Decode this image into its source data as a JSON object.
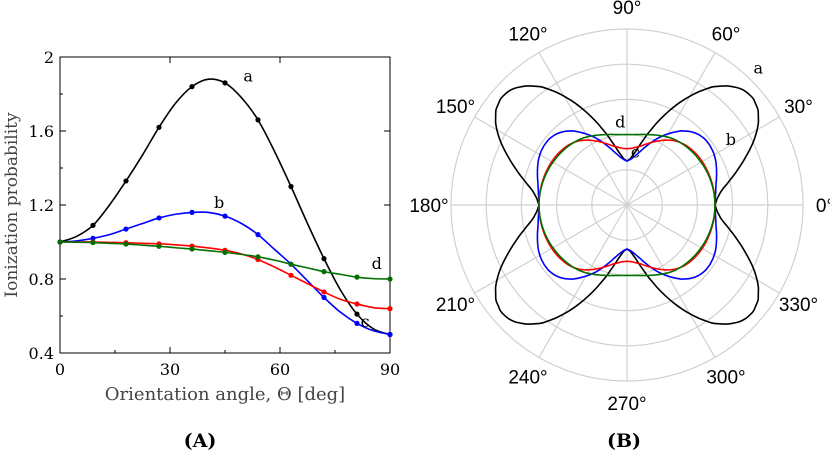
{
  "chart_data": [
    {
      "panel_label": "(A)",
      "type": "line",
      "xlabel": "Orientation angle, Θ [deg]",
      "ylabel": "Ionization probability",
      "xlim": [
        0,
        90
      ],
      "ylim": [
        0.4,
        2.0
      ],
      "xticks": [
        "0",
        "30",
        "60",
        "90"
      ],
      "xtick_values": [
        0,
        30,
        60,
        90
      ],
      "yticks": [
        "0.4",
        "0.8",
        "1.2",
        "1.6",
        "2"
      ],
      "ytick_values": [
        0.4,
        0.8,
        1.2,
        1.6,
        2.0
      ],
      "grid": false,
      "marker_x": [
        0,
        9,
        18,
        27,
        36,
        45,
        54,
        63,
        72,
        81,
        90
      ],
      "series": [
        {
          "name": "a",
          "color": "#000000",
          "x": [
            0,
            4.5,
            9,
            13.5,
            18,
            22.5,
            27,
            31.5,
            36,
            40.5,
            45,
            49.5,
            54,
            58.5,
            63,
            67.5,
            72,
            76.5,
            81,
            85.5,
            90
          ],
          "y": [
            1.0,
            1.03,
            1.09,
            1.2,
            1.33,
            1.47,
            1.62,
            1.75,
            1.84,
            1.88,
            1.86,
            1.78,
            1.66,
            1.49,
            1.3,
            1.1,
            0.91,
            0.74,
            0.61,
            0.53,
            0.5
          ]
        },
        {
          "name": "b",
          "color": "#0000ff",
          "x": [
            0,
            4.5,
            9,
            13.5,
            18,
            22.5,
            27,
            31.5,
            36,
            40.5,
            45,
            49.5,
            54,
            58.5,
            63,
            67.5,
            72,
            76.5,
            81,
            85.5,
            90
          ],
          "y": [
            1.0,
            1.006,
            1.02,
            1.04,
            1.07,
            1.1,
            1.13,
            1.15,
            1.16,
            1.16,
            1.14,
            1.1,
            1.04,
            0.96,
            0.88,
            0.79,
            0.7,
            0.62,
            0.56,
            0.52,
            0.5
          ]
        },
        {
          "name": "c",
          "color": "#ff0000",
          "x": [
            0,
            4.5,
            9,
            13.5,
            18,
            22.5,
            27,
            31.5,
            36,
            40.5,
            45,
            49.5,
            54,
            58.5,
            63,
            67.5,
            72,
            76.5,
            81,
            85.5,
            90
          ],
          "y": [
            1.0,
            1.0,
            1.0,
            0.998,
            0.996,
            0.993,
            0.99,
            0.985,
            0.978,
            0.968,
            0.955,
            0.935,
            0.905,
            0.865,
            0.82,
            0.775,
            0.73,
            0.69,
            0.665,
            0.645,
            0.64
          ]
        },
        {
          "name": "d",
          "color": "#007000",
          "x": [
            0,
            4.5,
            9,
            13.5,
            18,
            22.5,
            27,
            31.5,
            36,
            40.5,
            45,
            49.5,
            54,
            58.5,
            63,
            67.5,
            72,
            76.5,
            81,
            85.5,
            90
          ],
          "y": [
            1.0,
            0.999,
            0.997,
            0.993,
            0.989,
            0.983,
            0.977,
            0.969,
            0.962,
            0.953,
            0.944,
            0.933,
            0.92,
            0.902,
            0.88,
            0.86,
            0.84,
            0.825,
            0.81,
            0.802,
            0.8
          ]
        }
      ]
    },
    {
      "panel_label": "(B)",
      "type": "polar",
      "angle_labels": [
        "0°",
        "30°",
        "60°",
        "90°",
        "120°",
        "150°",
        "180°",
        "210°",
        "240°",
        "270°",
        "300°",
        "330°"
      ],
      "angle_values_deg": [
        0,
        30,
        60,
        90,
        120,
        150,
        180,
        210,
        240,
        270,
        300,
        330
      ],
      "r_grid": [
        0.4,
        0.8,
        1.2,
        1.6,
        2.0
      ],
      "r_max": 2.0,
      "grid": true,
      "note": "Each curve is the panel A series mirrored to all four quadrants.",
      "series": [
        {
          "name": "a",
          "color": "#000000"
        },
        {
          "name": "b",
          "color": "#0000ff"
        },
        {
          "name": "c",
          "color": "#ff0000"
        },
        {
          "name": "d",
          "color": "#007000"
        }
      ]
    }
  ]
}
